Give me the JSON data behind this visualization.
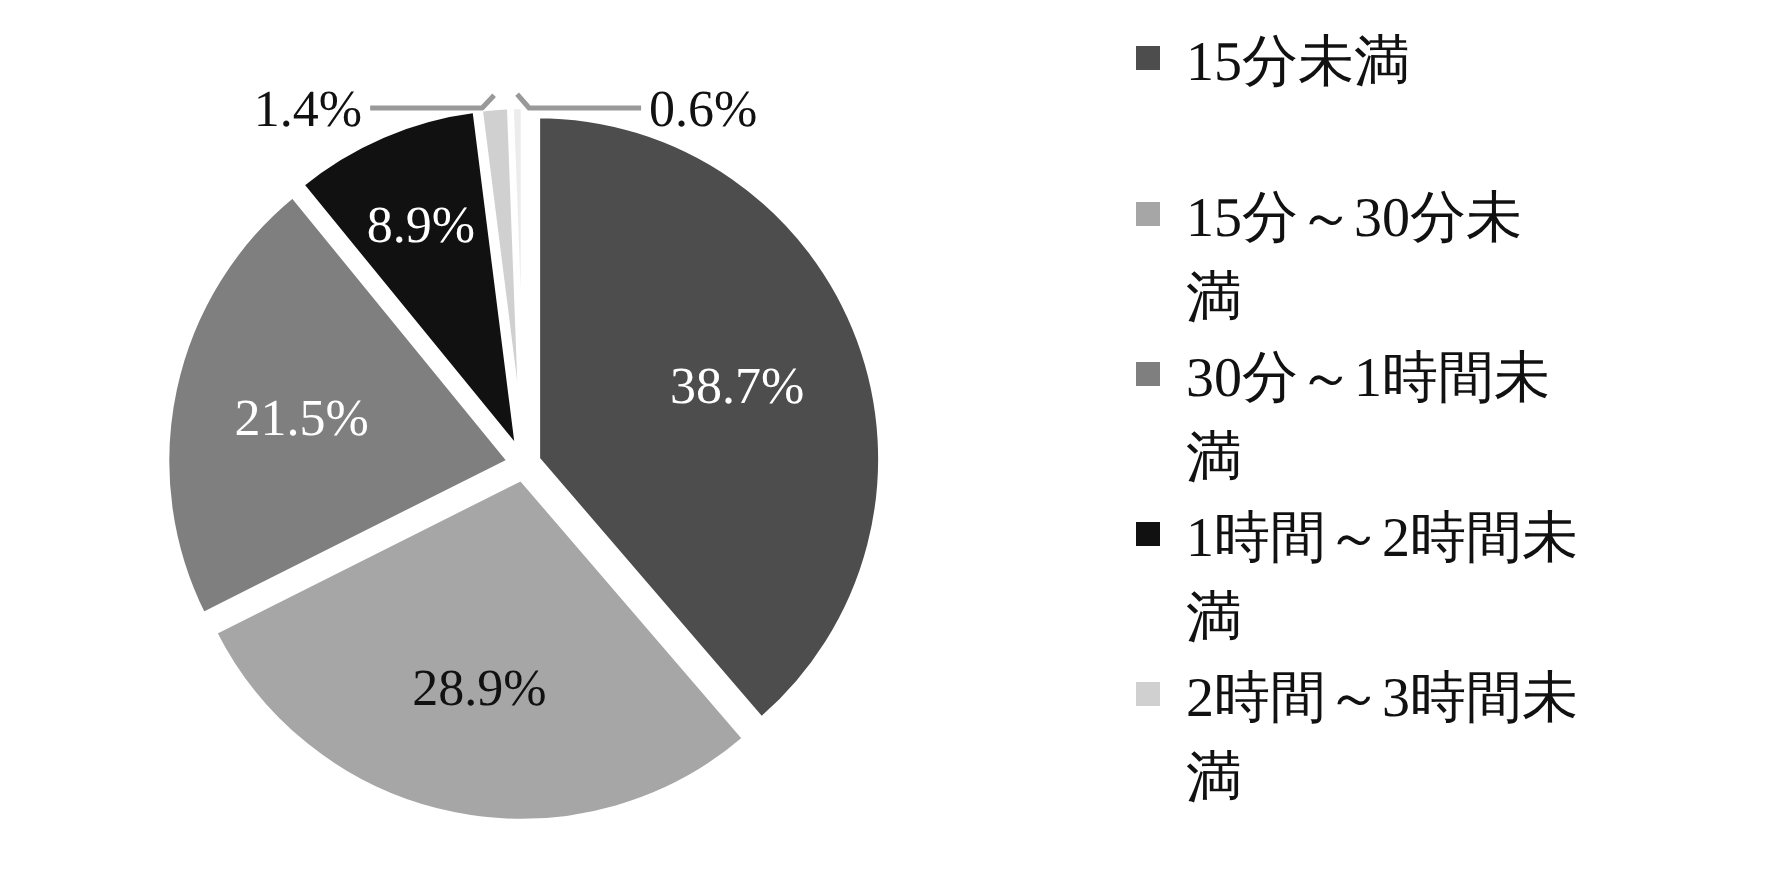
{
  "chart_data": {
    "type": "pie",
    "categories": [
      "15分未満",
      "15分～30分未満",
      "30分～1時間未満",
      "1時間～2時間未満",
      "2時間～3時間未満",
      null
    ],
    "values": [
      38.7,
      28.9,
      21.5,
      8.9,
      1.4,
      0.6
    ],
    "colors": [
      "#4d4d4d",
      "#a6a6a6",
      "#7f7f7f",
      "#111111",
      "#d0d0d0",
      "#ececec"
    ],
    "value_labels": [
      "38.7%",
      "28.9%",
      "21.5%",
      "8.9%",
      "1.4%",
      "0.6%"
    ],
    "legend": "right"
  }
}
